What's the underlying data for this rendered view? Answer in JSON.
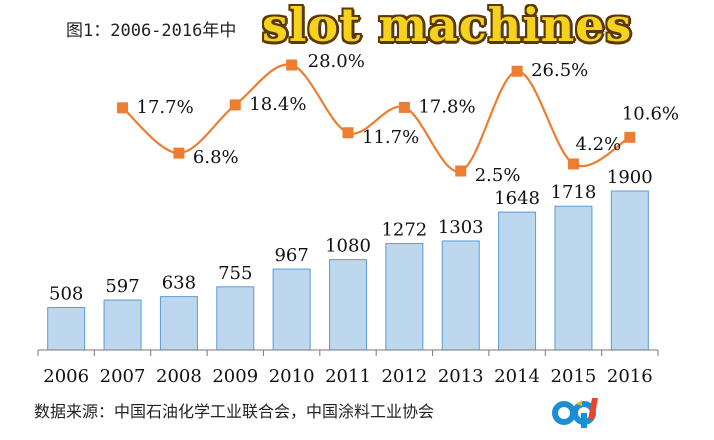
{
  "chart_data": {
    "type": "bar",
    "title": "图1：2006-2016年中",
    "categories": [
      "2006",
      "2007",
      "2008",
      "2009",
      "2010",
      "2011",
      "2012",
      "2013",
      "2014",
      "2015",
      "2016"
    ],
    "series": [
      {
        "values": [
          508,
          597,
          638,
          755,
          967,
          1080,
          1272,
          1303,
          1648,
          1718,
          1900
        ],
        "color": "#bdd7ee",
        "border": "#5b9bd5"
      },
      {
        "values": [
          null,
          17.7,
          6.8,
          18.4,
          28.0,
          11.7,
          17.8,
          2.5,
          26.5,
          4.2,
          10.6
        ],
        "color": "#ed7d31"
      }
    ],
    "bar_labels": [
      "508",
      "597",
      "638",
      "755",
      "967",
      "1080",
      "1272",
      "1303",
      "1648",
      "1718",
      "1900"
    ],
    "line_labels": [
      "",
      "17.7%",
      "6.8%",
      "18.4%",
      "28.0%",
      "11.7%",
      "17.8%",
      "2.5%",
      "26.5%",
      "4.2%",
      "10.6%"
    ],
    "grid": false,
    "legend": "none"
  },
  "watermark_text": "slot machines",
  "source_text": "数据来源：中国石油化学工业联合会，中国涂料工业协会",
  "logo": {
    "name": "site-logo",
    "text": "cq"
  }
}
